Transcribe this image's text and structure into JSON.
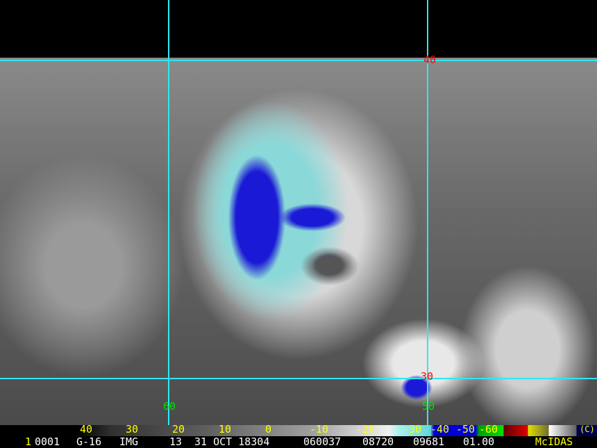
{
  "image": {
    "description_free": true
  },
  "grid": {
    "line_color": "#2ee8f0",
    "labels": [
      {
        "text": "40",
        "color": "#ff0000"
      },
      {
        "text": "30",
        "color": "#ff0000"
      },
      {
        "text": "60",
        "color": "#00e000"
      },
      {
        "text": "50",
        "color": "#00e000"
      }
    ]
  },
  "color_bar": {
    "labels": [
      "40",
      "30",
      "20",
      "10",
      "0",
      "-10",
      "-20",
      "-30",
      "-40",
      "-50",
      "-60"
    ],
    "unit_tag": "(C)"
  },
  "info_line": {
    "frame_number": "1",
    "frame_id": "0001",
    "satellite": "G-16",
    "type": "IMG",
    "band": "13",
    "date": "31 OCT 18304",
    "time": "060037",
    "field1": "08720",
    "field2": "09681",
    "resolution": "01.00",
    "software": "McIDAS"
  }
}
